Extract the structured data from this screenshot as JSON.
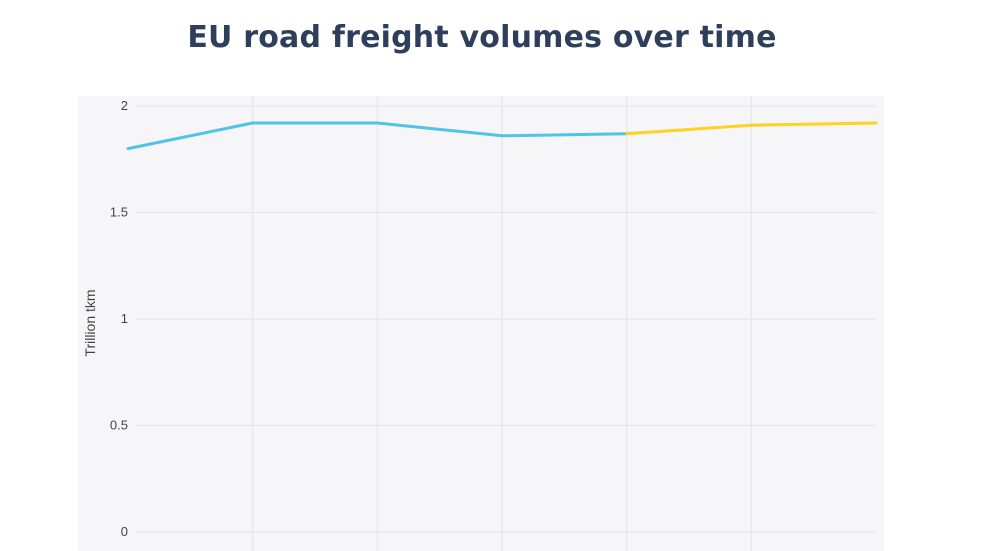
{
  "chart_data": {
    "type": "line",
    "title": "EU road freight volumes over time",
    "ylabel": "Trillion tkm",
    "xlabel": "",
    "ylim": [
      0,
      2
    ],
    "yticks": [
      {
        "value": 0,
        "label": "0"
      },
      {
        "value": 0.5,
        "label": "0.5"
      },
      {
        "value": 1,
        "label": "1"
      },
      {
        "value": 1.5,
        "label": "1.5"
      },
      {
        "value": 2,
        "label": "2"
      }
    ],
    "x": [
      0,
      1,
      2,
      3,
      4,
      5,
      6
    ],
    "xlim": [
      0,
      6
    ],
    "grid": true,
    "background": "#f6f5f8",
    "series": [
      {
        "color": "#4fc3e8",
        "x": [
          0,
          1,
          2,
          3,
          4
        ],
        "values": [
          1.8,
          1.92,
          1.92,
          1.86,
          1.87
        ]
      },
      {
        "color": "#ffd21f",
        "x": [
          4,
          5,
          6
        ],
        "values": [
          1.87,
          1.91,
          1.92
        ]
      }
    ]
  }
}
